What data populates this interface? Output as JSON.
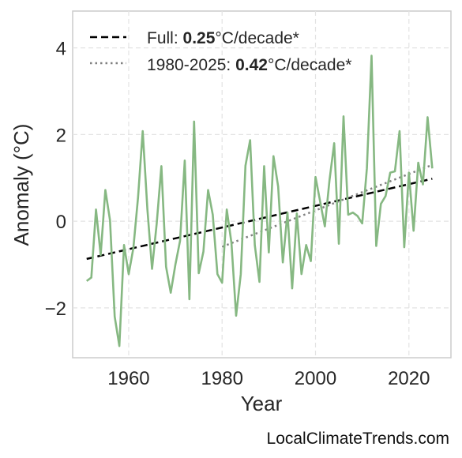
{
  "chart_data": {
    "type": "line",
    "xlabel": "Year",
    "ylabel": "Anomaly (°C)",
    "xlim": [
      1948,
      2029
    ],
    "ylim": [
      -3.15,
      4.85
    ],
    "xticks": [
      1960,
      1980,
      2000,
      2020
    ],
    "yticks": [
      -2,
      0,
      2,
      4
    ],
    "ytick_labels": [
      "−2",
      "0",
      "2",
      "4"
    ],
    "grid": true,
    "legend_placement": "top-left",
    "colors": {
      "series": "#86b882",
      "full_trend": "#000000",
      "recent_trend": "#808080"
    },
    "series": [
      {
        "values": {
          "x": [
            1951,
            1952,
            1953,
            1954,
            1955,
            1956,
            1957,
            1958,
            1959,
            1960,
            1961,
            1962,
            1963,
            1964,
            1965,
            1966,
            1967,
            1968,
            1969,
            1970,
            1971,
            1972,
            1973,
            1974,
            1975,
            1976,
            1977,
            1978,
            1979,
            1980,
            1981,
            1982,
            1983,
            1984,
            1985,
            1986,
            1987,
            1988,
            1989,
            1990,
            1991,
            1992,
            1993,
            1994,
            1995,
            1996,
            1997,
            1998,
            1999,
            2000,
            2001,
            2002,
            2003,
            2004,
            2005,
            2006,
            2007,
            2008,
            2009,
            2010,
            2011,
            2012,
            2013,
            2014,
            2015,
            2016,
            2017,
            2018,
            2019,
            2020,
            2021,
            2022,
            2023,
            2024,
            2025
          ],
          "y": [
            -1.38,
            -1.3,
            0.27,
            -0.78,
            0.72,
            0.02,
            -2.2,
            -2.88,
            -0.55,
            -1.22,
            -0.62,
            0.55,
            2.08,
            0.28,
            -1.1,
            -0.05,
            1.27,
            -1.05,
            -1.65,
            -1.0,
            -0.45,
            1.4,
            -1.8,
            2.3,
            -1.2,
            -0.7,
            0.72,
            0.15,
            -1.22,
            -1.42,
            0.27,
            -0.5,
            -2.18,
            -1.22,
            1.28,
            1.87,
            -0.55,
            -1.4,
            1.27,
            -0.72,
            1.5,
            0.8,
            -0.95,
            0.2,
            -1.55,
            0.18,
            -1.22,
            -0.55,
            -0.92,
            1.02,
            0.45,
            -0.12,
            0.95,
            1.8,
            -0.52,
            2.42,
            0.15,
            0.2,
            0.12,
            -0.05,
            1.22,
            3.82,
            -0.57,
            0.4,
            0.58,
            1.12,
            1.15,
            2.08,
            -0.6,
            1.12,
            -0.22,
            1.35,
            0.85,
            2.4,
            1.22
          ]
        }
      }
    ],
    "trends": [
      {
        "label_prefix": "Full: ",
        "label_value": "0.25",
        "label_suffix": "°C/decade*",
        "style": "dashed",
        "x": [
          1951,
          2025
        ],
        "y": [
          -0.87,
          0.98
        ]
      },
      {
        "label_prefix": "1980-2025: ",
        "label_value": "0.42",
        "label_suffix": "°C/decade*",
        "style": "dotted",
        "x": [
          1980,
          2025
        ],
        "y": [
          -0.59,
          1.3
        ]
      }
    ]
  },
  "watermark": "LocalClimateTrends.com"
}
